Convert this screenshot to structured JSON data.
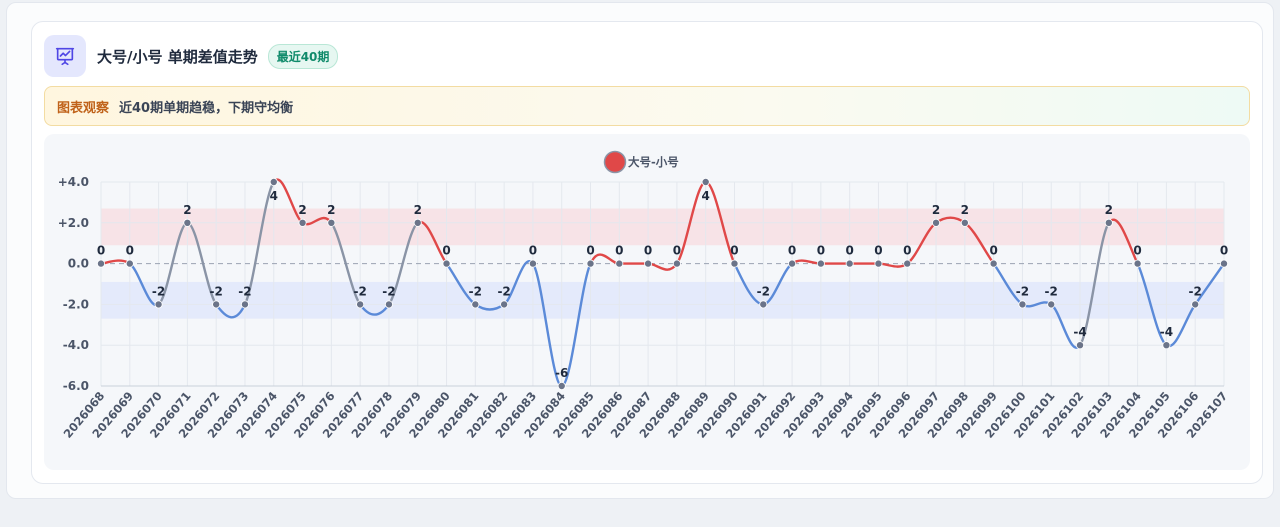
{
  "header": {
    "title": "大号/小号 单期差值走势",
    "badge": "最近40期",
    "icon": "presentation-chart-icon"
  },
  "note": {
    "label": "图表观察",
    "text": "近40期单期趋稳，下期守均衡"
  },
  "colors": {
    "positive": "#e04848",
    "negative": "#5b8ad8",
    "neutral": "#8a94a6",
    "positive_band": "#f7dfe3",
    "negative_band": "#e0e8fa"
  },
  "chart_data": {
    "type": "line",
    "legend": [
      "大号-小号"
    ],
    "legend_position": "top-center",
    "x": [
      "2026068",
      "2026069",
      "2026070",
      "2026071",
      "2026072",
      "2026073",
      "2026074",
      "2026075",
      "2026076",
      "2026077",
      "2026078",
      "2026079",
      "2026080",
      "2026081",
      "2026082",
      "2026083",
      "2026084",
      "2026085",
      "2026086",
      "2026087",
      "2026088",
      "2026089",
      "2026090",
      "2026091",
      "2026092",
      "2026093",
      "2026094",
      "2026095",
      "2026096",
      "2026097",
      "2026098",
      "2026099",
      "2026100",
      "2026101",
      "2026102",
      "2026103",
      "2026104",
      "2026105",
      "2026106",
      "2026107"
    ],
    "series": [
      {
        "name": "大号-小号",
        "values": [
          0,
          0,
          -2,
          2,
          -2,
          -2,
          4,
          2,
          2,
          -2,
          -2,
          2,
          0,
          -2,
          -2,
          0,
          -6,
          0,
          0,
          0,
          0,
          4,
          0,
          -2,
          0,
          0,
          0,
          0,
          0,
          2,
          2,
          0,
          -2,
          -2,
          -4,
          2,
          0,
          -4,
          -2,
          0
        ]
      }
    ],
    "y_ticks": [
      "+4.0",
      "+2.0",
      "0.0",
      "-2.0",
      "-4.0",
      "-6.0"
    ],
    "ylim": [
      -6,
      4
    ],
    "grid": true,
    "reference_line": 0,
    "bands": [
      {
        "from": 0.9,
        "to": 2.7,
        "kind": "positive"
      },
      {
        "from": -2.7,
        "to": -0.9,
        "kind": "negative"
      }
    ]
  }
}
